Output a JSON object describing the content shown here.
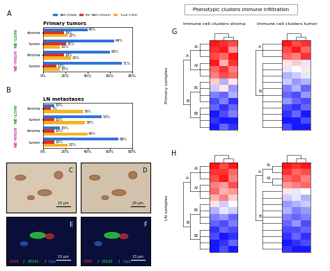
{
  "figure_title": "Phenotypic clusters immune infiltration",
  "chart_data": [
    {
      "panel": "A",
      "type": "bar",
      "orientation": "horizontal",
      "title": "Primary tumors",
      "categories": [
        "stroma",
        "tumor",
        "stroma",
        "tumor"
      ],
      "groups": [
        {
          "label": "NE-LOW",
          "color": "#2aa02a",
          "categories": [
            0,
            1
          ]
        },
        {
          "label": "NE-HIGH",
          "color": "#cc2fa8",
          "categories": [
            2,
            3
          ]
        }
      ],
      "series": [
        {
          "name": "TAM (CD68)",
          "color": "#2f73d6",
          "values": [
            40,
            64,
            60,
            71
          ],
          "value_labels": [
            "40%",
            "64%",
            "60%",
            "71%"
          ]
        },
        {
          "name": "M2 TAM (CD163)",
          "color": "#d9302c",
          "values": [
            19,
            21,
            19,
            12
          ],
          "value_labels": [
            "19%",
            "21%",
            "19%",
            "12%"
          ]
        },
        {
          "name": "T-cell (CD3)",
          "color": "#f5b324",
          "values": [
            22,
            15,
            25,
            15
          ],
          "value_labels": [
            "22%",
            "15%",
            "25%",
            "15%"
          ]
        }
      ],
      "xlim": [
        0,
        80
      ],
      "xticks": [
        {
          "value": 0,
          "label": "0%"
        },
        {
          "value": 20,
          "label": "20%"
        },
        {
          "value": 40,
          "label": "40%"
        },
        {
          "value": 60,
          "label": "60%"
        },
        {
          "value": 80,
          "label": "80%"
        }
      ],
      "data_labels": true,
      "legend": "upper left"
    },
    {
      "panel": "B",
      "type": "bar",
      "orientation": "horizontal",
      "title": "LN metastases",
      "categories": [
        "stroma",
        "tumor",
        "stroma",
        "tumor"
      ],
      "groups": [
        {
          "label": "NE-LOW",
          "color": "#2aa02a",
          "categories": [
            0,
            1
          ]
        },
        {
          "label": "NE-HIGH",
          "color": "#cc2fa8",
          "categories": [
            2,
            3
          ]
        }
      ],
      "series": [
        {
          "name": "TAM (CD68)",
          "color": "#2f73d6",
          "values": [
            10,
            53,
            15,
            68
          ],
          "value_labels": [
            "10%",
            "53%",
            "15%",
            "68%"
          ]
        },
        {
          "name": "M2 TAM (CD163)",
          "color": "#d9302c",
          "values": [
            7,
            10,
            10,
            10
          ],
          "value_labels": [
            "7%",
            "10%",
            "10%",
            "10%"
          ]
        },
        {
          "name": "T-cell (CD3)",
          "color": "#f5b324",
          "values": [
            36,
            38,
            40,
            22
          ],
          "value_labels": [
            "36%",
            "38%",
            "40%",
            "22%"
          ]
        }
      ],
      "xlim": [
        0,
        80
      ],
      "xticks": [
        {
          "value": 0,
          "label": "0%"
        },
        {
          "value": 20,
          "label": "20%"
        },
        {
          "value": 40,
          "label": "40%"
        },
        {
          "value": 60,
          "label": "60%"
        },
        {
          "value": 80,
          "label": "80%"
        }
      ],
      "data_labels": true
    }
  ],
  "images": [
    {
      "panel": "C",
      "scale_bar": "20 μm",
      "color": "#d9c9b3"
    },
    {
      "panel": "D",
      "scale_bar": "20 μm",
      "color": "#d3c2ab"
    },
    {
      "panel": "E",
      "scale_bar": "10 μm",
      "color": "#0a0f3a",
      "stain_legend": [
        {
          "text": "CD68",
          "color": "#ff3030"
        },
        {
          "text": "CD163",
          "color": "#30ff30"
        },
        {
          "text": "Dapi",
          "color": "#5080ff"
        }
      ],
      "separator": " / "
    },
    {
      "panel": "F",
      "scale_bar": "15 μm",
      "color": "#0a0f3a",
      "stain_legend": [
        {
          "text": "CD68",
          "color": "#ff3030"
        },
        {
          "text": "CD163",
          "color": "#30ff30"
        },
        {
          "text": "Dapi",
          "color": "#5080ff"
        }
      ],
      "separator": " / "
    }
  ],
  "heatmaps": {
    "row_labels": [
      "Primary samples",
      "LN samples"
    ],
    "column_titles": [
      "Immune cell clusters stroma",
      "Immune cell clusters tumor"
    ],
    "color_range": [
      -1,
      1
    ],
    "panels": [
      {
        "panel": "G",
        "maps": [
          {
            "cells": [
              [
                0.9,
                0.8,
                0.7
              ],
              [
                0.8,
                0.9,
                0.4
              ],
              [
                0.7,
                0.6,
                0.9
              ],
              [
                0.9,
                0.3,
                0.8
              ],
              [
                0.6,
                0.8,
                0.5
              ],
              [
                0.5,
                0.7,
                0.6
              ],
              [
                0.2,
                -0.3,
                0.1
              ],
              [
                -0.2,
                0.1,
                -0.4
              ],
              [
                -0.5,
                -0.6,
                -0.3
              ],
              [
                -0.7,
                -0.5,
                -0.8
              ],
              [
                -0.6,
                -0.8,
                -0.6
              ],
              [
                -0.9,
                -0.7,
                -0.5
              ],
              [
                -0.8,
                -0.9,
                -0.9
              ],
              [
                -0.9,
                -0.6,
                -0.8
              ]
            ],
            "clusters": [
              {
                "label": "A",
                "start": 0,
                "end": 5
              },
              {
                "label": "A1",
                "start": 0,
                "end": 2
              },
              {
                "label": "A2",
                "start": 3,
                "end": 5
              },
              {
                "label": "B",
                "start": 6,
                "end": 13
              },
              {
                "label": "B1",
                "start": 6,
                "end": 9
              },
              {
                "label": "B2",
                "start": 10,
                "end": 13
              }
            ]
          },
          {
            "cells": [
              [
                0.9,
                0.7,
                0.8
              ],
              [
                0.7,
                0.9,
                0.6
              ],
              [
                0.6,
                0.5,
                0.8
              ],
              [
                0.1,
                0.2,
                -0.1
              ],
              [
                -0.1,
                0.0,
                0.1
              ],
              [
                -0.3,
                -0.2,
                -0.1
              ],
              [
                -0.2,
                -0.4,
                -0.3
              ],
              [
                -0.5,
                -0.3,
                -0.6
              ],
              [
                -0.6,
                -0.7,
                -0.4
              ],
              [
                -0.4,
                -0.6,
                -0.7
              ],
              [
                -0.7,
                -0.8,
                -0.6
              ],
              [
                -0.8,
                -0.6,
                -0.9
              ],
              [
                -0.9,
                -0.9,
                -0.7
              ],
              [
                -0.7,
                -0.9,
                -0.9
              ]
            ],
            "clusters": [
              {
                "label": "A",
                "start": 0,
                "end": 2
              },
              {
                "label": "B",
                "start": 3,
                "end": 13
              }
            ]
          }
        ]
      },
      {
        "panel": "H",
        "maps": [
          {
            "cells": [
              [
                0.9,
                0.7,
                0.9
              ],
              [
                0.8,
                0.8,
                0.6
              ],
              [
                0.7,
                0.9,
                0.5
              ],
              [
                0.5,
                0.4,
                0.7
              ],
              [
                0.6,
                0.3,
                0.4
              ],
              [
                0.3,
                0.5,
                0.2
              ],
              [
                0.1,
                -0.2,
                0.0
              ],
              [
                -0.3,
                -0.1,
                -0.2
              ],
              [
                -0.5,
                -0.4,
                -0.6
              ],
              [
                -0.6,
                -0.7,
                -0.5
              ],
              [
                -0.8,
                -0.6,
                -0.7
              ],
              [
                -0.7,
                -0.9,
                -0.8
              ],
              [
                -0.9,
                -0.8,
                -0.6
              ],
              [
                -0.9,
                -0.7,
                -0.9
              ]
            ],
            "clusters": [
              {
                "label": "A",
                "start": 0,
                "end": 5
              },
              {
                "label": "A1",
                "start": 0,
                "end": 2
              },
              {
                "label": "A2",
                "start": 3,
                "end": 5
              },
              {
                "label": "B",
                "start": 6,
                "end": 13
              },
              {
                "label": "B1",
                "start": 6,
                "end": 9
              },
              {
                "label": "B2",
                "start": 10,
                "end": 13
              }
            ]
          },
          {
            "cells": [
              [
                0.9,
                0.8,
                0.9
              ],
              [
                0.8,
                0.6,
                0.7
              ],
              [
                0.6,
                0.7,
                0.5
              ],
              [
                0.4,
                0.5,
                0.6
              ],
              [
                0.1,
                -0.1,
                0.0
              ],
              [
                -0.2,
                -0.1,
                -0.3
              ],
              [
                -0.4,
                -0.3,
                -0.2
              ],
              [
                -0.3,
                -0.5,
                -0.4
              ],
              [
                -0.5,
                -0.6,
                -0.5
              ],
              [
                -0.6,
                -0.4,
                -0.7
              ],
              [
                -0.7,
                -0.7,
                -0.6
              ],
              [
                -0.8,
                -0.6,
                -0.8
              ],
              [
                -0.9,
                -0.8,
                -0.7
              ],
              [
                -0.8,
                -0.9,
                -0.9
              ]
            ],
            "clusters": [
              {
                "label": "A",
                "start": 0,
                "end": 3
              },
              {
                "label": "A1",
                "start": 0,
                "end": 1
              },
              {
                "label": "A2",
                "start": 2,
                "end": 3
              },
              {
                "label": "B",
                "start": 4,
                "end": 13
              }
            ]
          }
        ]
      }
    ]
  }
}
